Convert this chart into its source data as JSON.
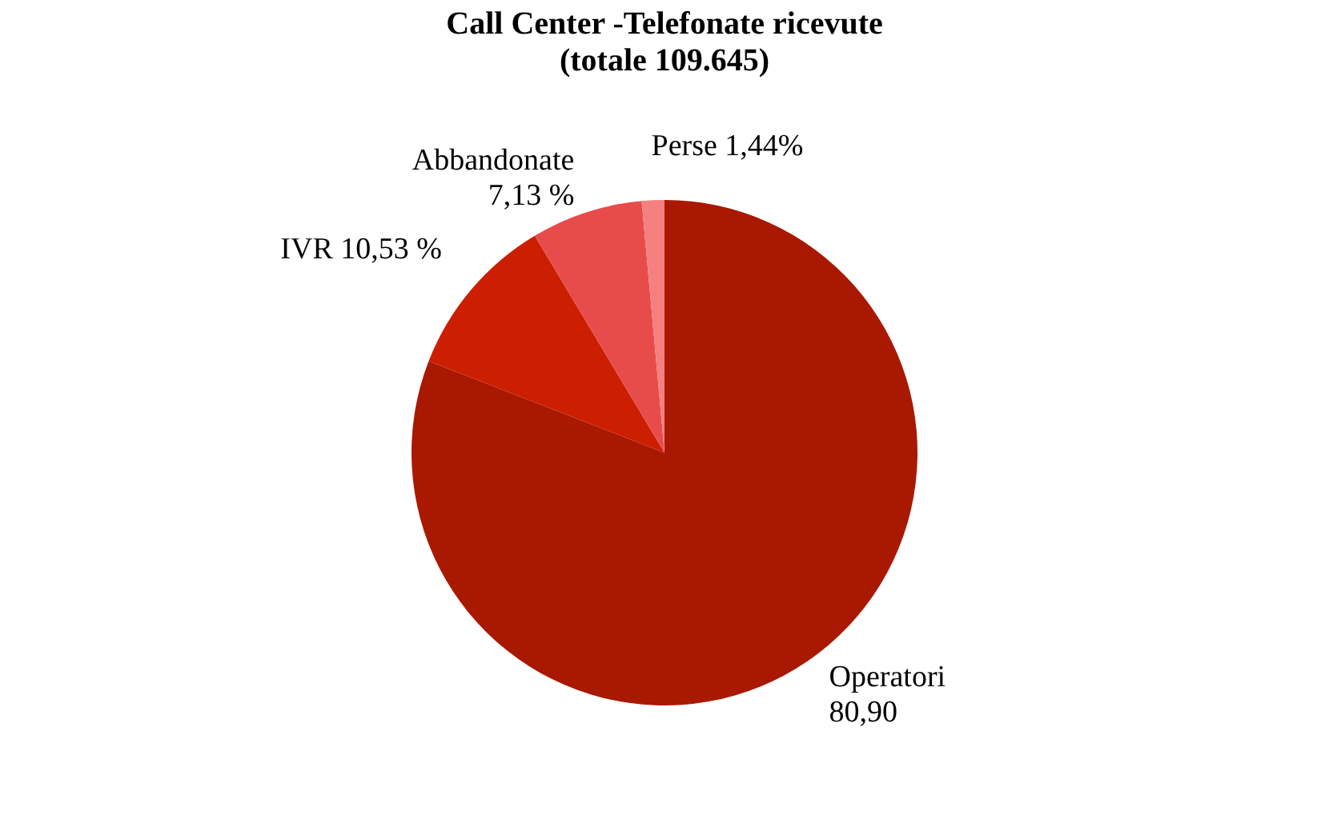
{
  "chart_data": {
    "type": "pie",
    "title": "Call Center -Telefonate ricevute",
    "subtitle": "(totale 109.645)",
    "categories": [
      "Operatori",
      "IVR",
      "Abbandonate",
      "Perse"
    ],
    "values": [
      80.9,
      10.53,
      7.13,
      1.44
    ],
    "value_labels": [
      "80,90",
      "10,53 %",
      "7,13 %",
      "1,44%"
    ],
    "colors": [
      "#a91800",
      "#cc1e00",
      "#e84c4a",
      "#f58080"
    ],
    "legend": false
  }
}
